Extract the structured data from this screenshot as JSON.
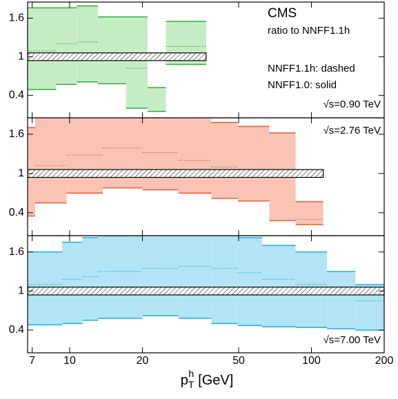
{
  "chart_data": [
    {
      "type": "step-band",
      "color": "#2eae2e",
      "fill": "#c6ecc6",
      "bins": [
        6.7,
        8.8,
        10.7,
        13.1,
        17.1,
        21,
        25,
        36.7
      ],
      "upper": [
        1.76,
        1.76,
        1.79,
        1.62,
        1.62,
        0.52,
        1.55
      ],
      "lower": [
        0.49,
        0.57,
        0.61,
        0.58,
        0.2,
        0.15,
        0.88
      ],
      "dashed": [
        1.09,
        1.2,
        1.23,
        1.03,
        0.82,
        null,
        1.16
      ],
      "ref_band": [
        0.94,
        1.06
      ],
      "ylim": [
        0.05,
        1.85
      ],
      "yticks": [
        0.4,
        1,
        1.6
      ],
      "annotations": [
        "CMS",
        "ratio to NNFF1.1h",
        "NNFF1.1h: dashed",
        "NNFF1.0: solid",
        "√s=0.90 TeV"
      ]
    },
    {
      "type": "step-band",
      "color": "#ec5a2e",
      "fill": "#f9c4b6",
      "bins": [
        6.7,
        7.2,
        9.7,
        13.7,
        20,
        28.2,
        38.6,
        49.6,
        67,
        86,
        112
      ],
      "upper": [
        1.7,
        1.9,
        1.9,
        1.9,
        1.9,
        1.88,
        1.78,
        1.72,
        1.62,
        0.57
      ],
      "lower": [
        0.35,
        0.55,
        0.7,
        0.78,
        0.75,
        0.7,
        0.62,
        0.58,
        0.28,
        0.22
      ],
      "dashed": [
        1.0,
        1.12,
        1.28,
        1.39,
        1.32,
        1.2,
        1.1,
        1.03,
        0.95,
        0.3
      ],
      "ref_band": [
        0.94,
        1.06
      ],
      "ylim": [
        0.05,
        1.85
      ],
      "yticks": [
        0.4,
        1,
        1.6
      ],
      "annotations": [
        "√s=2.76 TeV"
      ]
    },
    {
      "type": "step-band",
      "color": "#1aaee0",
      "fill": "#b2e4f5",
      "bins": [
        6.7,
        9.3,
        11.3,
        13.1,
        20,
        28.2,
        38.6,
        49.6,
        62.6,
        86,
        116,
        152,
        200
      ],
      "upper": [
        1.6,
        1.75,
        1.82,
        1.85,
        1.9,
        1.9,
        1.9,
        1.82,
        1.7,
        1.6,
        1.3,
        1.1
      ],
      "lower": [
        0.48,
        0.5,
        0.55,
        0.58,
        0.62,
        0.58,
        0.5,
        0.47,
        0.45,
        0.44,
        0.42,
        0.4
      ],
      "dashed": [
        1.1,
        1.18,
        1.22,
        1.3,
        1.35,
        1.38,
        1.35,
        1.28,
        1.18,
        1.1,
        0.98,
        0.85
      ],
      "ref_band": [
        0.94,
        1.06
      ],
      "ylim": [
        0.05,
        1.85
      ],
      "yticks": [
        0.4,
        1,
        1.6
      ],
      "xlim": [
        6.7,
        200
      ],
      "xticks": [
        7,
        10,
        20,
        50,
        100,
        200
      ],
      "xlog": true,
      "xlabel": {
        "base": "p",
        "sub": "T",
        "sup": "h",
        "unit": "[GeV]"
      },
      "annotations": [
        "√s=7.00 TeV"
      ]
    }
  ]
}
